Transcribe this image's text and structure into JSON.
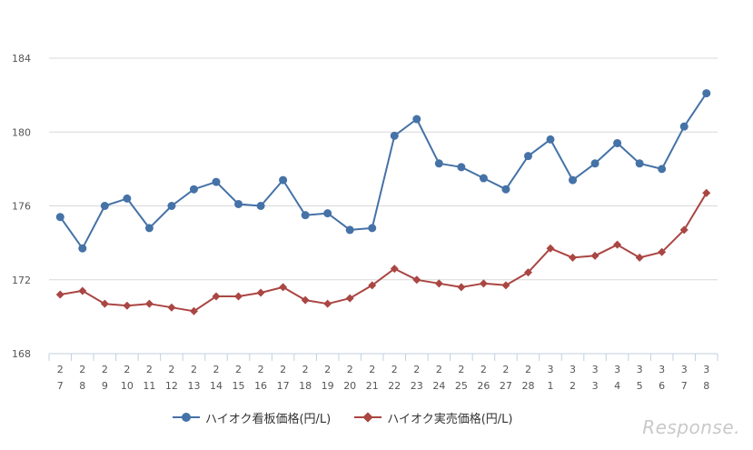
{
  "chart_data": {
    "type": "line",
    "categories": [
      [
        "2",
        "7"
      ],
      [
        "2",
        "8"
      ],
      [
        "2",
        "9"
      ],
      [
        "2",
        "10"
      ],
      [
        "2",
        "11"
      ],
      [
        "2",
        "12"
      ],
      [
        "2",
        "13"
      ],
      [
        "2",
        "14"
      ],
      [
        "2",
        "15"
      ],
      [
        "2",
        "16"
      ],
      [
        "2",
        "17"
      ],
      [
        "2",
        "18"
      ],
      [
        "2",
        "19"
      ],
      [
        "2",
        "20"
      ],
      [
        "2",
        "21"
      ],
      [
        "2",
        "22"
      ],
      [
        "2",
        "23"
      ],
      [
        "2",
        "24"
      ],
      [
        "2",
        "25"
      ],
      [
        "2",
        "26"
      ],
      [
        "2",
        "27"
      ],
      [
        "2",
        "28"
      ],
      [
        "3",
        "1"
      ],
      [
        "3",
        "2"
      ],
      [
        "3",
        "3"
      ],
      [
        "3",
        "4"
      ],
      [
        "3",
        "5"
      ],
      [
        "3",
        "6"
      ],
      [
        "3",
        "7"
      ],
      [
        "3",
        "8"
      ]
    ],
    "series": [
      {
        "name": "ハイオク看板価格(円/L)",
        "color": "#4572a7",
        "marker": "circle",
        "values": [
          175.4,
          173.7,
          176.0,
          176.4,
          174.8,
          176.0,
          176.9,
          177.3,
          176.1,
          176.0,
          177.4,
          175.5,
          175.6,
          174.7,
          174.8,
          179.8,
          180.7,
          178.3,
          178.1,
          177.5,
          176.9,
          178.7,
          179.6,
          177.4,
          178.3,
          179.4,
          178.3,
          178.0,
          180.3,
          182.1
        ]
      },
      {
        "name": "ハイオク実売価格(円/L)",
        "color": "#aa4643",
        "marker": "diamond",
        "values": [
          171.2,
          171.4,
          170.7,
          170.6,
          170.7,
          170.5,
          170.3,
          171.1,
          171.1,
          171.3,
          171.6,
          170.9,
          170.7,
          171.0,
          171.7,
          172.6,
          172.0,
          171.8,
          171.6,
          171.8,
          171.7,
          172.4,
          173.7,
          173.2,
          173.3,
          173.9,
          173.2,
          173.5,
          174.7,
          176.7
        ]
      }
    ],
    "ylim": [
      168,
      184
    ],
    "yticks": [
      "168",
      "172",
      "176",
      "180",
      "184"
    ],
    "grid": true,
    "legend_position": "bottom",
    "xlabel": "",
    "ylabel": "",
    "title": ""
  },
  "watermark": "Response."
}
